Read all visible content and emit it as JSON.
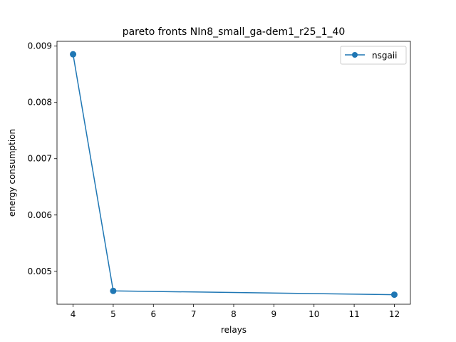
{
  "chart_data": {
    "type": "line",
    "title": "pareto fronts NIn8_small_ga-dem1_r25_1_40",
    "xlabel": "relays",
    "ylabel": "energy consumption",
    "xlim": [
      3.6,
      12.4
    ],
    "ylim": [
      0.004415,
      0.009085
    ],
    "xticks": [
      4,
      5,
      6,
      7,
      8,
      9,
      10,
      11,
      12
    ],
    "xtick_labels": [
      "4",
      "5",
      "6",
      "7",
      "8",
      "9",
      "10",
      "11",
      "12"
    ],
    "yticks": [
      0.005,
      0.006,
      0.007,
      0.008,
      0.009
    ],
    "ytick_labels": [
      "0.005",
      "0.006",
      "0.007",
      "0.008",
      "0.009"
    ],
    "grid": false,
    "legend": "upper right",
    "series": [
      {
        "name": "nsgaii",
        "color": "#1f77b4",
        "marker": "circle",
        "x": [
          4,
          5,
          12
        ],
        "y": [
          0.008855,
          0.004652,
          0.004585
        ]
      }
    ]
  }
}
